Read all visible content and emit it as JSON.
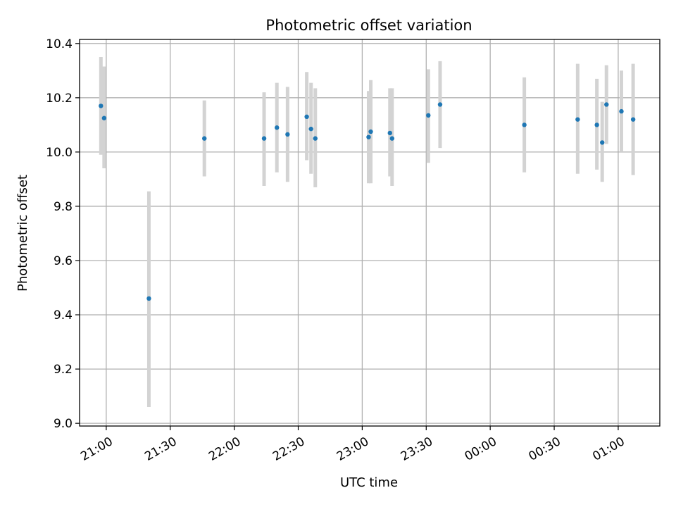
{
  "chart_data": {
    "type": "scatter",
    "title": "Photometric offset variation",
    "xlabel": "UTC time",
    "ylabel": "Photometric offset",
    "ylim": [
      8.99,
      10.415
    ],
    "xlim": [
      "20:47:30",
      "01:19:30"
    ],
    "grid": true,
    "yticks": [
      9.0,
      9.2,
      9.4,
      9.6,
      9.8,
      10.0,
      10.2,
      10.4
    ],
    "xticks": [
      "21:00",
      "21:30",
      "22:00",
      "22:30",
      "23:00",
      "23:30",
      "00:00",
      "00:30",
      "01:00"
    ],
    "colors": {
      "point": "#1f77b4",
      "errorbar": "#d3d3d3"
    },
    "points": [
      {
        "t": "20:57:30",
        "y": 10.17,
        "ylow": 9.99,
        "yhigh": 10.35
      },
      {
        "t": "20:59:00",
        "y": 10.125,
        "ylow": 9.94,
        "yhigh": 10.315
      },
      {
        "t": "21:20:00",
        "y": 9.46,
        "ylow": 9.06,
        "yhigh": 9.855
      },
      {
        "t": "21:46:00",
        "y": 10.05,
        "ylow": 9.91,
        "yhigh": 10.19
      },
      {
        "t": "22:14:00",
        "y": 10.05,
        "ylow": 9.875,
        "yhigh": 10.22
      },
      {
        "t": "22:20:00",
        "y": 10.09,
        "ylow": 9.925,
        "yhigh": 10.255
      },
      {
        "t": "22:25:00",
        "y": 10.065,
        "ylow": 9.89,
        "yhigh": 10.24
      },
      {
        "t": "22:34:00",
        "y": 10.13,
        "ylow": 9.97,
        "yhigh": 10.295
      },
      {
        "t": "22:36:00",
        "y": 10.085,
        "ylow": 9.92,
        "yhigh": 10.255
      },
      {
        "t": "22:38:00",
        "y": 10.05,
        "ylow": 9.87,
        "yhigh": 10.235
      },
      {
        "t": "23:03:00",
        "y": 10.055,
        "ylow": 9.885,
        "yhigh": 10.225
      },
      {
        "t": "23:04:00",
        "y": 10.075,
        "ylow": 9.885,
        "yhigh": 10.265
      },
      {
        "t": "23:13:00",
        "y": 10.07,
        "ylow": 9.91,
        "yhigh": 10.235
      },
      {
        "t": "23:14:00",
        "y": 10.05,
        "ylow": 9.875,
        "yhigh": 10.235
      },
      {
        "t": "23:31:00",
        "y": 10.135,
        "ylow": 9.96,
        "yhigh": 10.305
      },
      {
        "t": "23:36:30",
        "y": 10.175,
        "ylow": 10.015,
        "yhigh": 10.335
      },
      {
        "t": "00:16:00",
        "y": 10.1,
        "ylow": 9.925,
        "yhigh": 10.275
      },
      {
        "t": "00:41:00",
        "y": 10.12,
        "ylow": 9.92,
        "yhigh": 10.325
      },
      {
        "t": "00:50:00",
        "y": 10.1,
        "ylow": 9.935,
        "yhigh": 10.27
      },
      {
        "t": "00:52:30",
        "y": 10.035,
        "ylow": 9.89,
        "yhigh": 10.185
      },
      {
        "t": "00:54:30",
        "y": 10.175,
        "ylow": 10.03,
        "yhigh": 10.32
      },
      {
        "t": "01:01:30",
        "y": 10.15,
        "ylow": 10.0,
        "yhigh": 10.3
      },
      {
        "t": "01:07:00",
        "y": 10.12,
        "ylow": 9.915,
        "yhigh": 10.325
      }
    ]
  }
}
